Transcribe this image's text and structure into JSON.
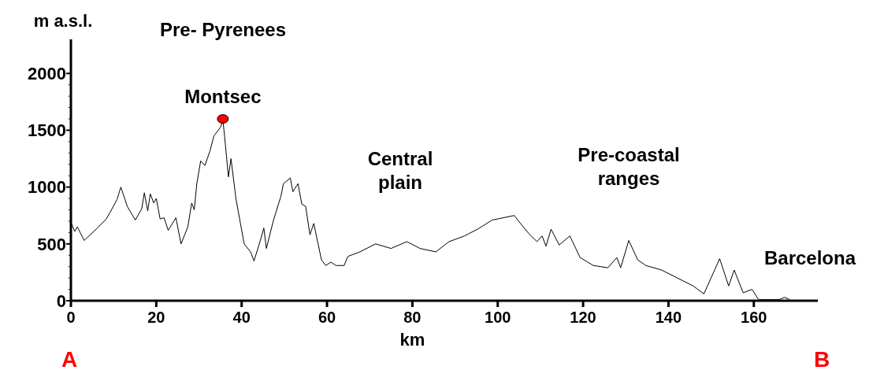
{
  "chart_data": {
    "type": "line",
    "xlabel": "km",
    "ylabel": "m a.s.l.",
    "xlim": [
      0,
      175
    ],
    "ylim": [
      0,
      2300
    ],
    "xticks": [
      0,
      20,
      40,
      60,
      80,
      100,
      120,
      140,
      160
    ],
    "yticks": [
      0,
      {
        "value": 100,
        "label": null
      },
      {
        "value": 200,
        "label": null
      },
      {
        "value": 300,
        "label": null
      },
      {
        "value": 400,
        "label": null
      },
      500,
      {
        "value": 600,
        "label": null
      },
      {
        "value": 700,
        "label": null
      },
      {
        "value": 800,
        "label": null
      },
      {
        "value": 900,
        "label": null
      },
      1000,
      {
        "value": 1100,
        "label": null
      },
      {
        "value": 1200,
        "label": null
      },
      {
        "value": 1300,
        "label": null
      },
      {
        "value": 1400,
        "label": null
      },
      1500,
      {
        "value": 1600,
        "label": null
      },
      {
        "value": 1700,
        "label": null
      },
      {
        "value": 1800,
        "label": null
      },
      {
        "value": 1900,
        "label": null
      },
      2000
    ],
    "grid": false,
    "series": [
      {
        "type": "line",
        "color": "#000000",
        "x": [
          0,
          0.9,
          1.5,
          3.1,
          6.2,
          8.3,
          9.2,
          10.8,
          11.7,
          12.6,
          13.2,
          15.1,
          16.6,
          17.2,
          18.0,
          18.6,
          19.4,
          20.0,
          20.9,
          21.8,
          22.8,
          24.6,
          25.8,
          27.4,
          28.3,
          28.9,
          29.5,
          30.4,
          31.4,
          32.6,
          33.5,
          35.1,
          35.6,
          36.0,
          36.9,
          37.5,
          38.7,
          40.6,
          42.1,
          42.9,
          44.3,
          45.2,
          45.8,
          47.4,
          49.2,
          49.8,
          51.4,
          52.0,
          53.2,
          54.1,
          55.0,
          56.0,
          56.9,
          57.8,
          58.7,
          59.7,
          60.9,
          62.1,
          64.0,
          64.9,
          67.7,
          71.4,
          75.0,
          78.7,
          81.8,
          85.5,
          88.6,
          92.2,
          95.3,
          98.7,
          103.9,
          104.9,
          107.3,
          109.2,
          110.4,
          111.3,
          112.5,
          114.4,
          116.9,
          119.3,
          122.4,
          125.8,
          127.9,
          128.8,
          130.7,
          132.8,
          134.7,
          138.4,
          142.1,
          145.8,
          148.3,
          152.0,
          154.1,
          155.4,
          157.5,
          159.6,
          161.1,
          166.0,
          167.2,
          168.4
        ],
        "values": [
          690,
          610,
          650,
          530,
          640,
          720,
          780,
          890,
          1000,
          900,
          830,
          710,
          810,
          950,
          790,
          940,
          860,
          900,
          720,
          730,
          620,
          730,
          500,
          650,
          860,
          800,
          1030,
          1230,
          1190,
          1320,
          1450,
          1530,
          1590,
          1450,
          1090,
          1250,
          890,
          500,
          430,
          350,
          520,
          640,
          460,
          700,
          920,
          1030,
          1080,
          960,
          1030,
          850,
          830,
          580,
          680,
          520,
          360,
          310,
          340,
          310,
          310,
          390,
          430,
          500,
          460,
          520,
          460,
          430,
          520,
          570,
          630,
          710,
          750,
          700,
          590,
          520,
          570,
          480,
          630,
          490,
          570,
          380,
          310,
          290,
          380,
          290,
          530,
          360,
          310,
          270,
          200,
          130,
          60,
          370,
          130,
          270,
          70,
          100,
          10,
          10,
          30,
          10
        ]
      },
      {
        "type": "scatter",
        "color": "#ff0000",
        "marker": "circle",
        "x": [
          35.6
        ],
        "values": [
          1600
        ]
      }
    ],
    "annotations": [
      "Pre- Pyrenees",
      {
        "text": "Montsec",
        "x": 35.6,
        "y": 1600
      },
      "Central\nplain",
      "Pre-coastal\nranges",
      "Barcelona",
      "A",
      "B"
    ]
  }
}
